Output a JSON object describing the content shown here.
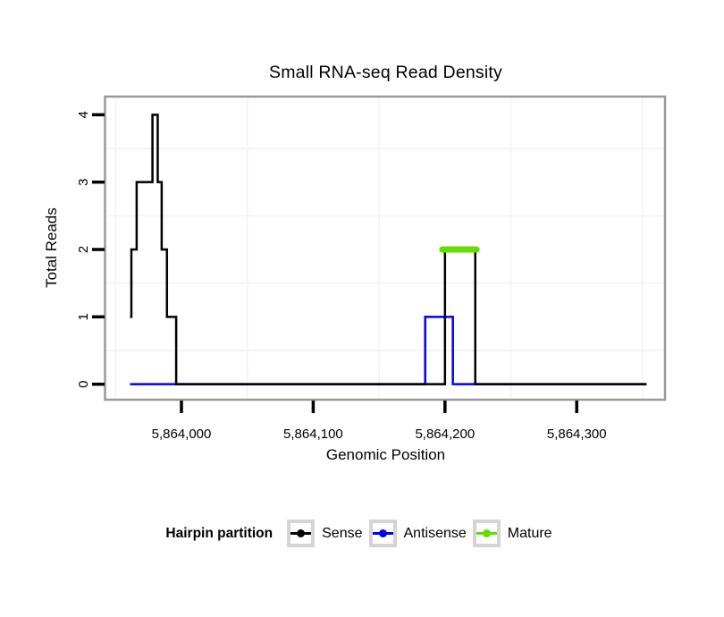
{
  "chart": {
    "title": "Small RNA-seq Read Density",
    "xlabel": "Genomic Position",
    "ylabel": "Total Reads"
  },
  "chart_data": {
    "type": "line",
    "subtype": "step-coverage",
    "title": "Small RNA-seq Read Density",
    "xlabel": "Genomic Position",
    "ylabel": "Total Reads",
    "xlim": [
      5863942,
      5864367
    ],
    "ylim": [
      -0.23,
      4.27
    ],
    "x_ticks": [
      {
        "value": 5864000,
        "label": "5,864,000"
      },
      {
        "value": 5864100,
        "label": "5,864,100"
      },
      {
        "value": 5864200,
        "label": "5,864,200"
      },
      {
        "value": 5864300,
        "label": "5,864,300"
      }
    ],
    "y_ticks": [
      {
        "value": 0,
        "label": "0"
      },
      {
        "value": 1,
        "label": "1"
      },
      {
        "value": 2,
        "label": "2"
      },
      {
        "value": 3,
        "label": "3"
      },
      {
        "value": 4,
        "label": "4"
      }
    ],
    "x_minor_gridlines": [
      5863950,
      5864050,
      5864150,
      5864250,
      5864350
    ],
    "y_minor_gridlines": [
      0.5,
      1.5,
      2.5,
      3.5
    ],
    "grid": "minor-only",
    "legend_position": "bottom",
    "draw_order": [
      "Antisense",
      "Sense",
      "Mature"
    ],
    "series": [
      {
        "name": "Sense",
        "color": "#000000",
        "style": "step",
        "linewidth": 2.5,
        "points": [
          [
            5863961,
            1
          ],
          [
            5863962,
            2
          ],
          [
            5863966,
            3
          ],
          [
            5863978,
            4
          ],
          [
            5863982,
            3
          ],
          [
            5863985,
            2
          ],
          [
            5863989,
            1
          ],
          [
            5863996,
            0
          ],
          [
            5864200,
            2
          ],
          [
            5864223,
            0
          ],
          [
            5864353,
            0
          ]
        ]
      },
      {
        "name": "Antisense",
        "color": "#0000F0",
        "style": "step",
        "linewidth": 2.5,
        "points": [
          [
            5863961,
            0
          ],
          [
            5864185,
            1
          ],
          [
            5864206,
            0
          ],
          [
            5864353,
            0
          ]
        ]
      },
      {
        "name": "Mature",
        "color": "#66DD00",
        "style": "segment",
        "linewidth": 7,
        "y": 2,
        "x_start": 5864198,
        "x_end": 5864224
      }
    ],
    "panel_border_color": "#999999",
    "gridline_color": "#f5f5f5",
    "tick_color": "#000000"
  },
  "legend": {
    "title": "Hairpin partition",
    "items": [
      {
        "label": "Sense",
        "color": "#000000"
      },
      {
        "label": "Antisense",
        "color": "#0000F0"
      },
      {
        "label": "Mature",
        "color": "#66DD00"
      }
    ]
  }
}
